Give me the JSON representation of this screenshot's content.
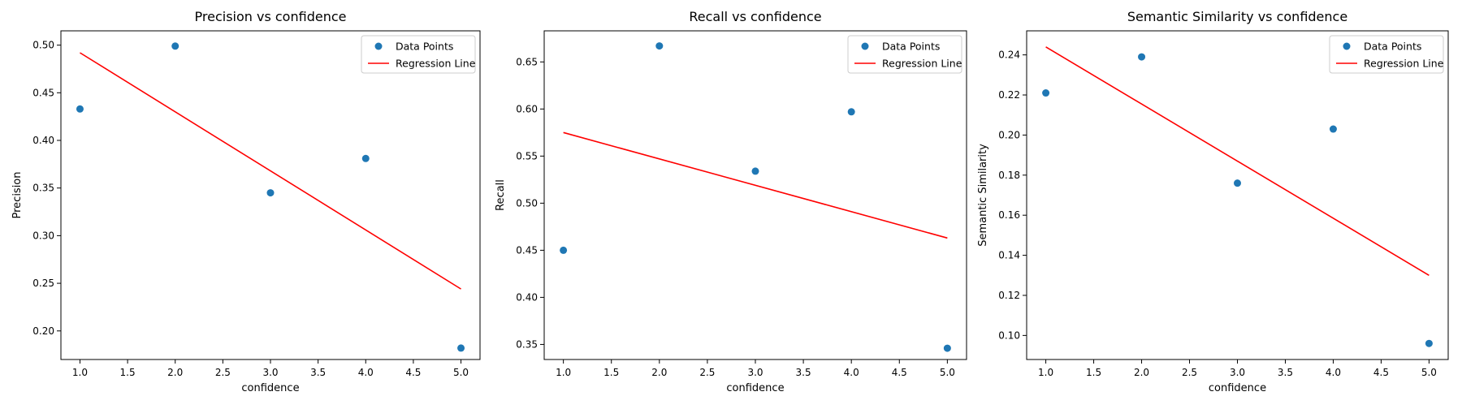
{
  "chart_data": [
    {
      "type": "scatter",
      "title": "Precision vs confidence",
      "xlabel": "confidence",
      "ylabel": "Precision",
      "xlim": [
        0.8,
        5.2
      ],
      "ylim": [
        0.17,
        0.515
      ],
      "xticks": [
        1.0,
        1.5,
        2.0,
        2.5,
        3.0,
        3.5,
        4.0,
        4.5,
        5.0
      ],
      "xtick_labels": [
        "1.0",
        "1.5",
        "2.0",
        "2.5",
        "3.0",
        "3.5",
        "4.0",
        "4.5",
        "5.0"
      ],
      "yticks": [
        0.2,
        0.25,
        0.3,
        0.35,
        0.4,
        0.45,
        0.5
      ],
      "ytick_labels": [
        "0.20",
        "0.25",
        "0.30",
        "0.35",
        "0.40",
        "0.45",
        "0.50"
      ],
      "grid": false,
      "legend": "top-right",
      "series": [
        {
          "name": "Data Points",
          "kind": "scatter",
          "color": "#1f77b4",
          "x": [
            1,
            2,
            3,
            4,
            5
          ],
          "y": [
            0.433,
            0.499,
            0.345,
            0.381,
            0.182
          ]
        },
        {
          "name": "Regression Line",
          "kind": "line",
          "color": "#ff0000",
          "x": [
            1,
            5
          ],
          "y": [
            0.492,
            0.244
          ]
        }
      ]
    },
    {
      "type": "scatter",
      "title": "Recall vs confidence",
      "xlabel": "confidence",
      "ylabel": "Recall",
      "xlim": [
        0.8,
        5.2
      ],
      "ylim": [
        0.334,
        0.683
      ],
      "xticks": [
        1.0,
        1.5,
        2.0,
        2.5,
        3.0,
        3.5,
        4.0,
        4.5,
        5.0
      ],
      "xtick_labels": [
        "1.0",
        "1.5",
        "2.0",
        "2.5",
        "3.0",
        "3.5",
        "4.0",
        "4.5",
        "5.0"
      ],
      "yticks": [
        0.35,
        0.4,
        0.45,
        0.5,
        0.55,
        0.6,
        0.65
      ],
      "ytick_labels": [
        "0.35",
        "0.40",
        "0.45",
        "0.50",
        "0.55",
        "0.60",
        "0.65"
      ],
      "grid": false,
      "legend": "top-right",
      "series": [
        {
          "name": "Data Points",
          "kind": "scatter",
          "color": "#1f77b4",
          "x": [
            1,
            2,
            3,
            4,
            5
          ],
          "y": [
            0.45,
            0.667,
            0.534,
            0.597,
            0.346
          ]
        },
        {
          "name": "Regression Line",
          "kind": "line",
          "color": "#ff0000",
          "x": [
            1,
            5
          ],
          "y": [
            0.575,
            0.463
          ]
        }
      ]
    },
    {
      "type": "scatter",
      "title": "Semantic Similarity vs confidence",
      "xlabel": "confidence",
      "ylabel": "Semantic Similarity",
      "xlim": [
        0.8,
        5.2
      ],
      "ylim": [
        0.088,
        0.252
      ],
      "xticks": [
        1.0,
        1.5,
        2.0,
        2.5,
        3.0,
        3.5,
        4.0,
        4.5,
        5.0
      ],
      "xtick_labels": [
        "1.0",
        "1.5",
        "2.0",
        "2.5",
        "3.0",
        "3.5",
        "4.0",
        "4.5",
        "5.0"
      ],
      "yticks": [
        0.1,
        0.12,
        0.14,
        0.16,
        0.18,
        0.2,
        0.22,
        0.24
      ],
      "ytick_labels": [
        "0.10",
        "0.12",
        "0.14",
        "0.16",
        "0.18",
        "0.20",
        "0.22",
        "0.24"
      ],
      "grid": false,
      "legend": "top-right",
      "series": [
        {
          "name": "Data Points",
          "kind": "scatter",
          "color": "#1f77b4",
          "x": [
            1,
            2,
            3,
            4,
            5
          ],
          "y": [
            0.221,
            0.239,
            0.176,
            0.203,
            0.096
          ]
        },
        {
          "name": "Regression Line",
          "kind": "line",
          "color": "#ff0000",
          "x": [
            1,
            5
          ],
          "y": [
            0.244,
            0.13
          ]
        }
      ]
    }
  ]
}
